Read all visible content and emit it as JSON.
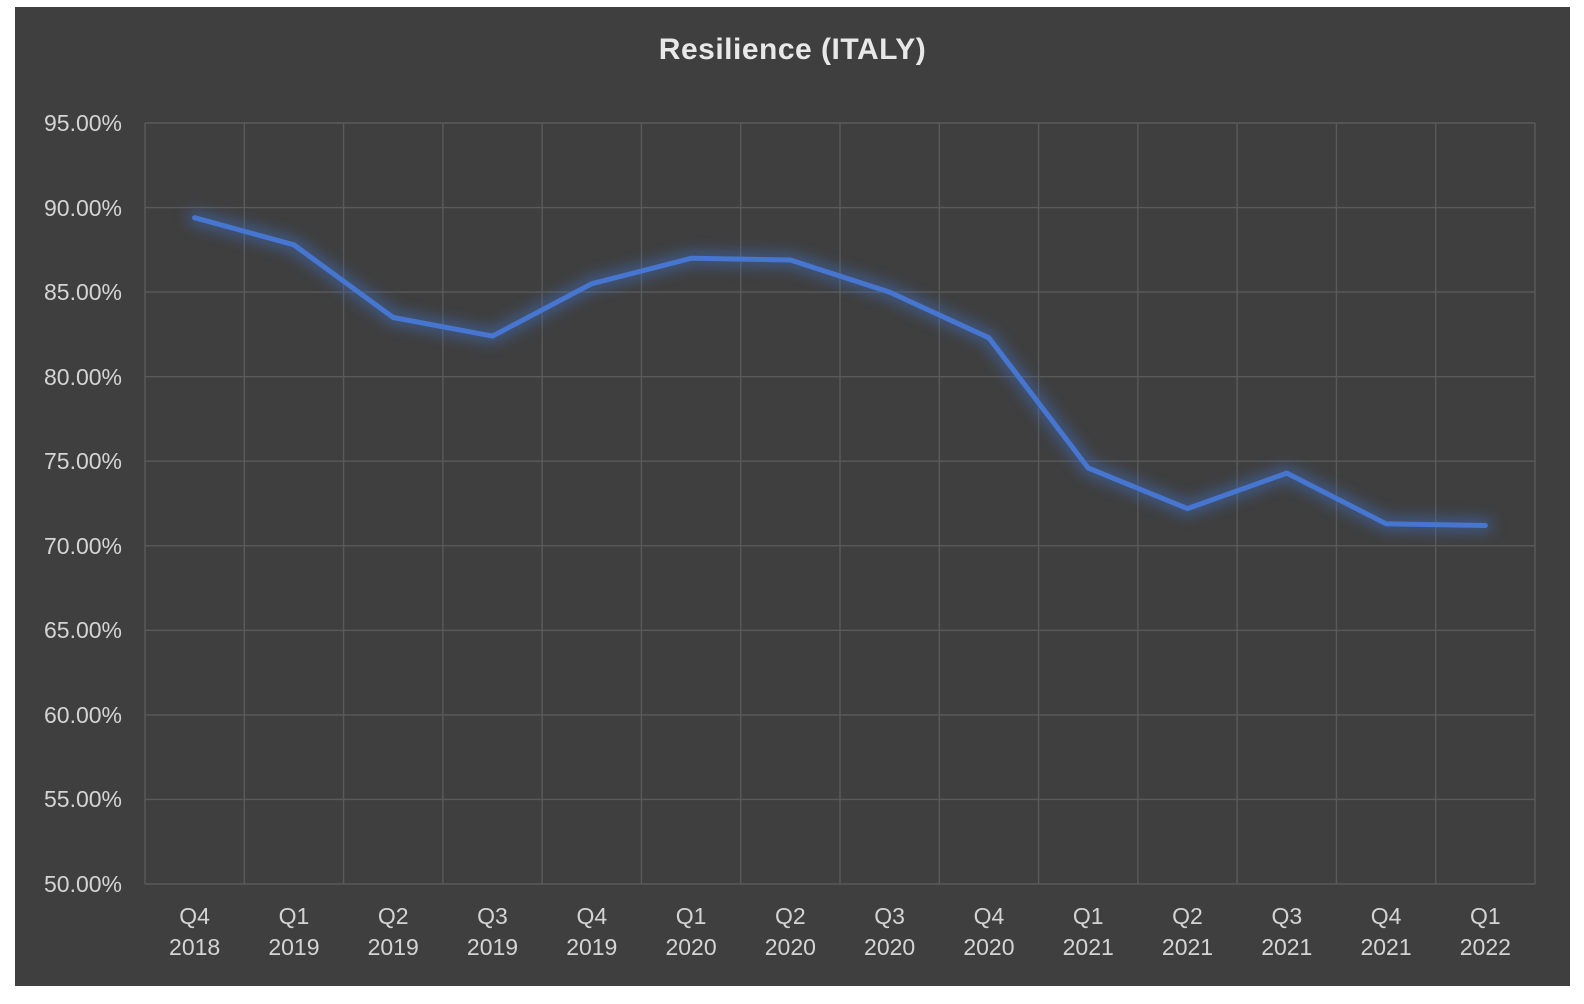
{
  "page": {
    "background": "#ffffff"
  },
  "chart": {
    "panel_background": "#3f3f3f",
    "gridline_color": "#5a5a5a",
    "axis_text_color": "#d4d4d4",
    "title_color": "#e8e8e8"
  },
  "chart_data": {
    "type": "line",
    "title": "Resilience (ITALY)",
    "categories": [
      "Q4 2018",
      "Q1 2019",
      "Q2 2019",
      "Q3 2019",
      "Q4 2019",
      "Q1 2020",
      "Q2 2020",
      "Q3 2020",
      "Q4 2020",
      "Q1 2021",
      "Q2 2021",
      "Q3 2021",
      "Q4 2021",
      "Q1 2022"
    ],
    "series": [
      {
        "name": "Resilience",
        "color": "#4676cf",
        "glow_color": "#3f6fc4",
        "values": [
          89.4,
          87.8,
          83.5,
          82.4,
          85.5,
          87.0,
          86.9,
          85.0,
          82.3,
          74.6,
          72.2,
          74.3,
          71.3,
          71.2
        ]
      }
    ],
    "y_axis": {
      "min": 50,
      "max": 95,
      "step": 5,
      "unit": "%",
      "tick_labels": [
        "95.00%",
        "90.00%",
        "85.00%",
        "80.00%",
        "75.00%",
        "70.00%",
        "65.00%",
        "60.00%",
        "55.00%",
        "50.00%"
      ]
    },
    "x_axis": {
      "two_line_labels": true
    },
    "grid": true,
    "legend": "none"
  }
}
